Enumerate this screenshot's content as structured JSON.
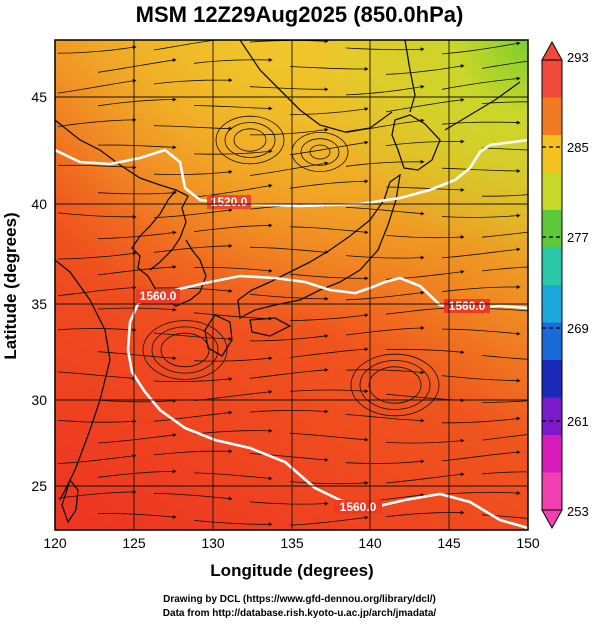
{
  "title": "MSM 12Z29Aug2025 (850.0hPa)",
  "map": {
    "lon_range": [
      120,
      150
    ],
    "lat_range": [
      22.7,
      48
    ],
    "x_ticks": [
      "120",
      "125",
      "130",
      "135",
      "140",
      "145",
      "150"
    ],
    "y_ticks": [
      "25",
      "30",
      "35",
      "40",
      "45"
    ],
    "xlabel": "Longitude (degrees)",
    "ylabel": "Latitude  (degrees)",
    "background_colors": {
      "warm": "#ee3a22",
      "mid": "#f06a22",
      "cool": "#e8d030",
      "green": "#7ccf2a"
    }
  },
  "contours": [
    {
      "label": "1520.0"
    },
    {
      "label": "1560.0"
    },
    {
      "label": "1560.0"
    },
    {
      "label": "1560.0"
    }
  ],
  "colorbar": {
    "labels": [
      "293",
      "285",
      "277",
      "269",
      "261",
      "253"
    ],
    "colors": [
      "#f04a3a",
      "#f07a22",
      "#f4c21e",
      "#c8d82a",
      "#5cc83a",
      "#2ac8a8",
      "#1aa8d8",
      "#1a6ad8",
      "#1a2ab8",
      "#7a1ac8",
      "#d81ab8",
      "#f040b0"
    ]
  },
  "credits": {
    "line1": "Drawing by DCL (https://www.gfd-dennou.org/library/dcl/)",
    "line2": "Data from http://database.rish.kyoto-u.ac.jp/arch/jmadata/"
  }
}
